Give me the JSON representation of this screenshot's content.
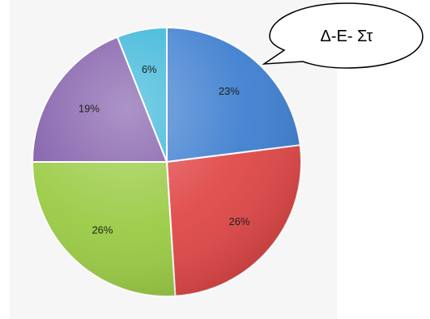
{
  "chart_data": {
    "type": "pie",
    "title": "",
    "start_angle_deg": 0,
    "direction": "clockwise",
    "slices": [
      {
        "label": "23%",
        "value": 23,
        "color": "#3f7fd0"
      },
      {
        "label": "26%",
        "value": 26,
        "color": "#e04848"
      },
      {
        "label": "26%",
        "value": 26,
        "color": "#9acb45"
      },
      {
        "label": "19%",
        "value": 19,
        "color": "#7f5aa8"
      },
      {
        "label": "6%",
        "value": 6,
        "color": "#36b5d8"
      }
    ]
  },
  "callout": {
    "text": "Δ-Ε- Στ"
  }
}
